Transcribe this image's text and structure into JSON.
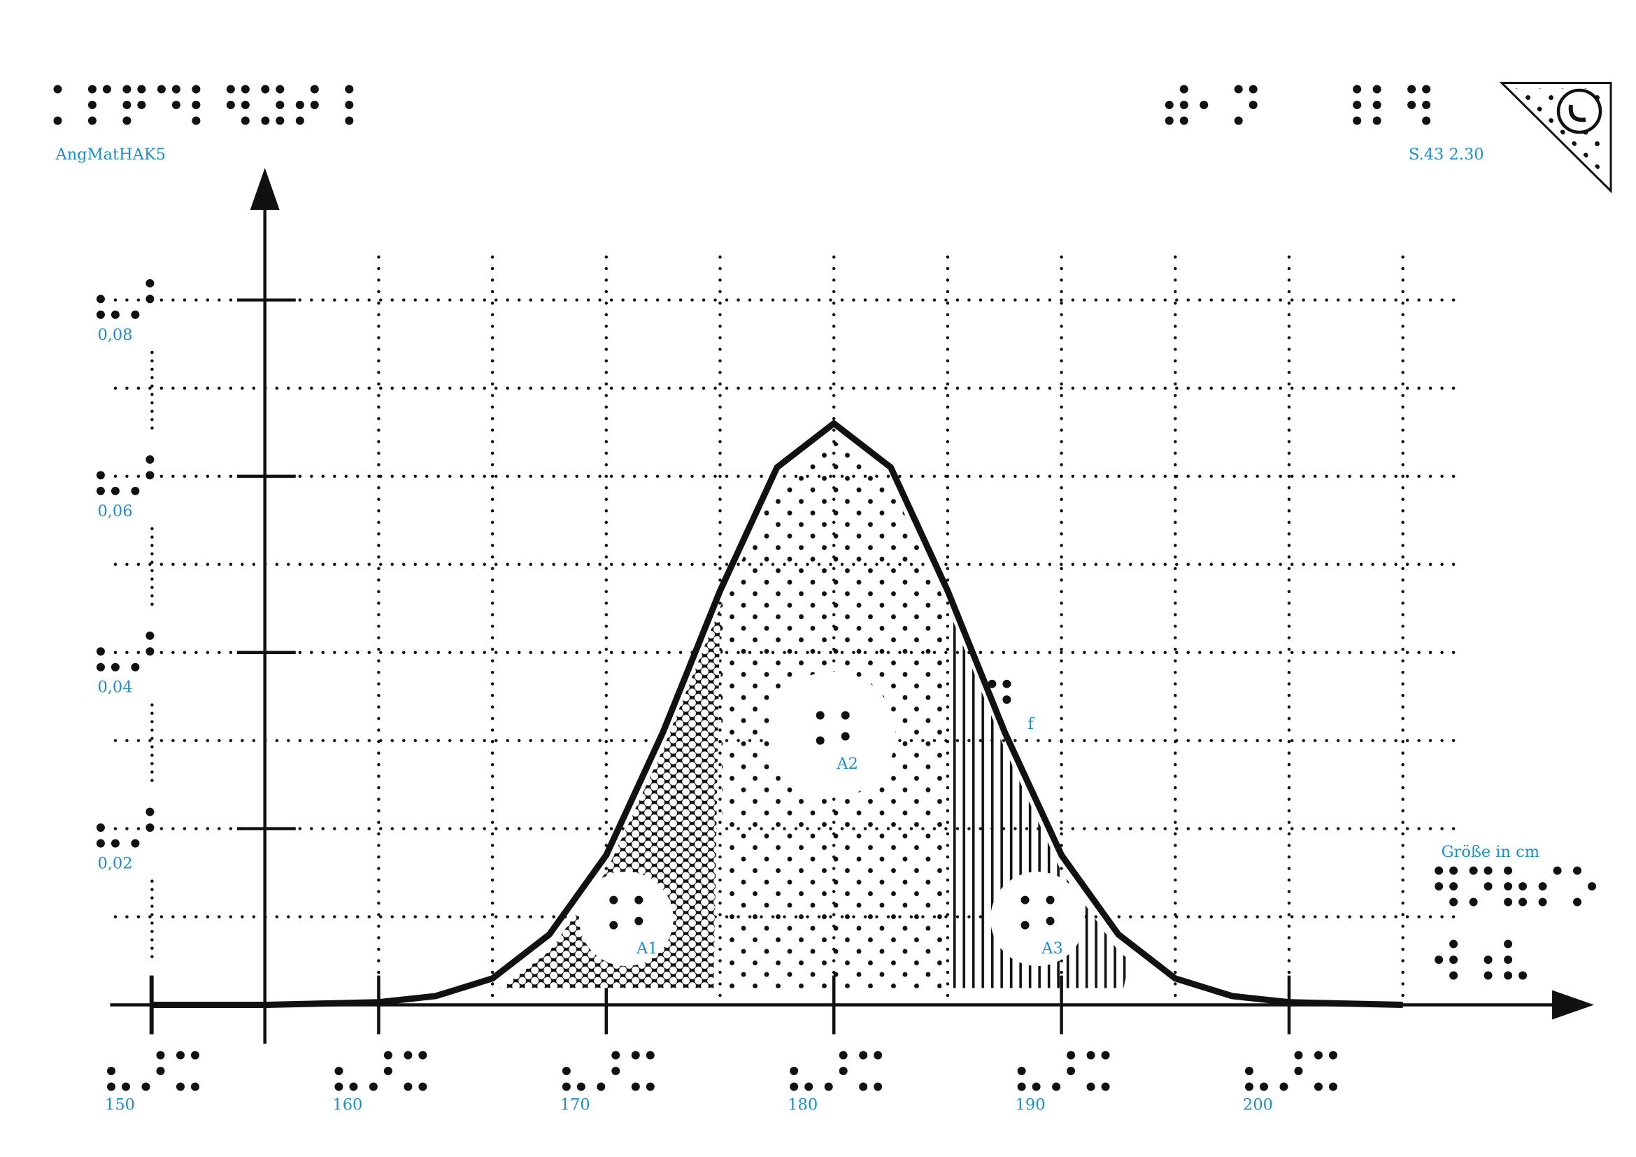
{
  "header": {
    "left": "AngMatHAK5",
    "right": "S.43 2.30"
  },
  "chart_data": {
    "type": "line",
    "x_label": "Größe in cm",
    "x": [
      150,
      155,
      160,
      162.5,
      165,
      167.5,
      170,
      172.5,
      175,
      177.5,
      180,
      182.5,
      185,
      187.5,
      190,
      192.5,
      195,
      197.5,
      200,
      205
    ],
    "series": [
      {
        "name": "f",
        "color": "#111111",
        "values": [
          0,
          0,
          0.0003,
          0.001,
          0.003,
          0.008,
          0.017,
          0.031,
          0.047,
          0.061,
          0.066,
          0.061,
          0.047,
          0.031,
          0.017,
          0.008,
          0.003,
          0.001,
          0.0003,
          0
        ]
      }
    ],
    "areas": [
      {
        "label": "A1",
        "from": 165,
        "to": 175,
        "pattern": "hex"
      },
      {
        "label": "A2",
        "from": 175,
        "to": 185,
        "pattern": "dots"
      },
      {
        "label": "A3",
        "from": 185,
        "to": 193,
        "pattern": "lines"
      }
    ],
    "xlim": [
      148.2,
      213.4
    ],
    "ylim": [
      -0.0044,
      0.095
    ],
    "xticks": [
      150,
      160,
      170,
      180,
      190,
      200
    ],
    "xgrid": [
      160,
      165,
      170,
      175,
      180,
      185,
      190,
      195,
      200,
      205
    ],
    "yticks": [
      {
        "value": 0.02,
        "label": "0,02"
      },
      {
        "value": 0.04,
        "label": "0,04"
      },
      {
        "value": 0.06,
        "label": "0,06"
      },
      {
        "value": 0.08,
        "label": "0,08"
      }
    ],
    "ygrid": [
      0.01,
      0.02,
      0.03,
      0.04,
      0.05,
      0.06,
      0.07,
      0.08
    ],
    "grid": true,
    "label_color": "#1a8fd0"
  }
}
